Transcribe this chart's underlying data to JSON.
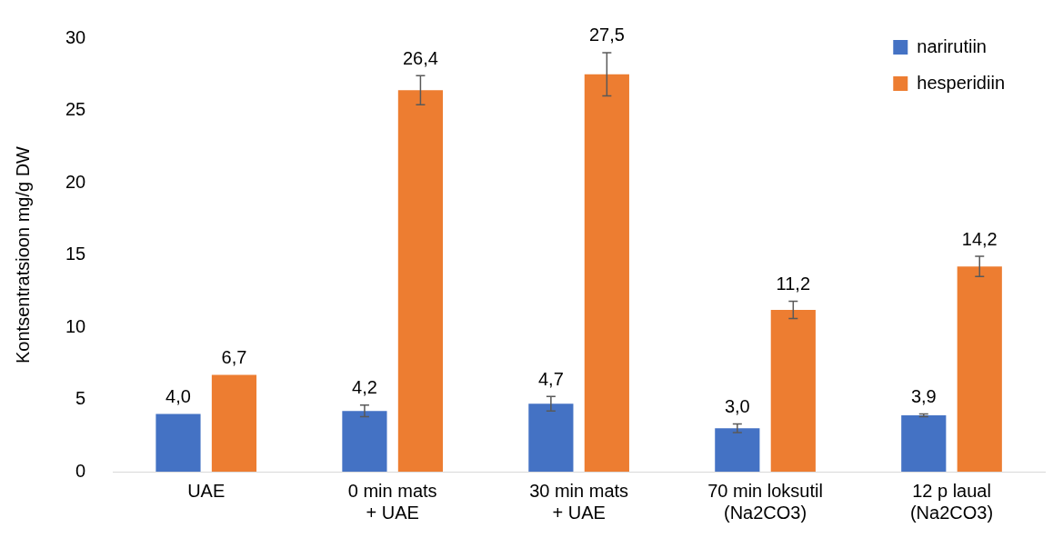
{
  "chart_data": {
    "type": "bar",
    "ylabel": "Kontsentratsioon mg/g DW",
    "categories": [
      "UAE",
      "0 min mats\n+ UAE",
      "30 min mats\n+ UAE",
      "70 min loksutil\n(Na2CO3)",
      "12 p laual\n(Na2CO3)"
    ],
    "series": [
      {
        "name": "narirutiin",
        "color": "#4472c4",
        "values": [
          4.0,
          4.2,
          4.7,
          3.0,
          3.9
        ],
        "errors": [
          null,
          0.4,
          0.5,
          0.3,
          0.1
        ],
        "value_labels": [
          "4,0",
          "4,2",
          "4,7",
          "3,0",
          "3,9"
        ]
      },
      {
        "name": "hesperidiin",
        "color": "#ed7d31",
        "values": [
          6.7,
          26.4,
          27.5,
          11.2,
          14.2
        ],
        "errors": [
          null,
          1.0,
          1.5,
          0.6,
          0.7
        ],
        "value_labels": [
          "6,7",
          "26,4",
          "27,5",
          "11,2",
          "14,2"
        ]
      }
    ],
    "ylim": [
      0,
      30
    ],
    "yticks": [
      0,
      5,
      10,
      15,
      20,
      25,
      30
    ],
    "grid": false,
    "legend": "top right"
  }
}
